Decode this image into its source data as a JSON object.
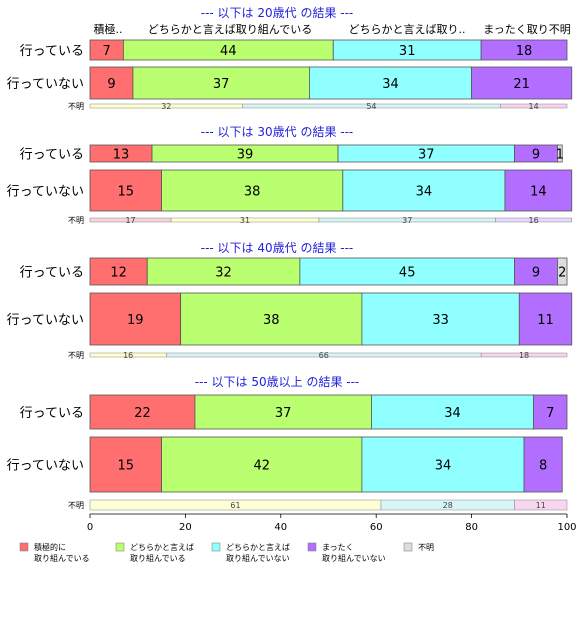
{
  "chart_data": {
    "type": "bar",
    "orientation": "horizontal",
    "stacked": true,
    "xlim": [
      0,
      100
    ],
    "x_ticks": [
      "0",
      "20",
      "40",
      "60",
      "80",
      "100"
    ],
    "colors": [
      "#ff6f6f",
      "#b9ff6f",
      "#8fffff",
      "#b26fff",
      "#dddddd"
    ],
    "legend_position": "bottom",
    "legend": [
      {
        "line1": "積極的に",
        "line2": "取り組んでいる"
      },
      {
        "line1": "どちらかと言えば",
        "line2": "取り組んでいる"
      },
      {
        "line1": "どちらかと言えば",
        "line2": "取り組んでいない"
      },
      {
        "line1": "まったく",
        "line2": "取り組んでいない"
      },
      {
        "line1": "不明",
        "line2": ""
      }
    ],
    "header_labels": [
      "積極..",
      "どちらかと言えば取り組んでいる",
      "どちらかと言えば取り..",
      "まったく取り不明"
    ],
    "unknown_label": "不明",
    "panels": [
      {
        "title": "--- 以下は 20歳代 の結果 ---",
        "rows": [
          {
            "label": "行っている",
            "values": [
              7,
              44,
              31,
              18,
              0
            ]
          },
          {
            "label": "行っていない",
            "values": [
              9,
              37,
              34,
              21,
              0
            ]
          }
        ],
        "unknown": [
          32,
          54,
          14
        ]
      },
      {
        "title": "--- 以下は 30歳代 の結果 ---",
        "rows": [
          {
            "label": "行っている",
            "values": [
              13,
              39,
              37,
              9,
              1
            ]
          },
          {
            "label": "行っていない",
            "values": [
              15,
              38,
              34,
              14,
              0
            ]
          }
        ],
        "unknown": [
          17,
          31,
          37,
          16
        ]
      },
      {
        "title": "--- 以下は 40歳代 の結果 ---",
        "rows": [
          {
            "label": "行っている",
            "values": [
              12,
              32,
              45,
              9,
              2
            ]
          },
          {
            "label": "行っていない",
            "values": [
              19,
              38,
              33,
              11,
              0
            ]
          }
        ],
        "unknown": [
          16,
          66,
          18
        ]
      },
      {
        "title": "--- 以下は 50歳以上 の結果 ---",
        "rows": [
          {
            "label": "行っている",
            "values": [
              22,
              37,
              34,
              7,
              0
            ]
          },
          {
            "label": "行っていない",
            "values": [
              15,
              42,
              34,
              8,
              0
            ]
          }
        ],
        "unknown": [
          61,
          28,
          11
        ]
      }
    ]
  }
}
